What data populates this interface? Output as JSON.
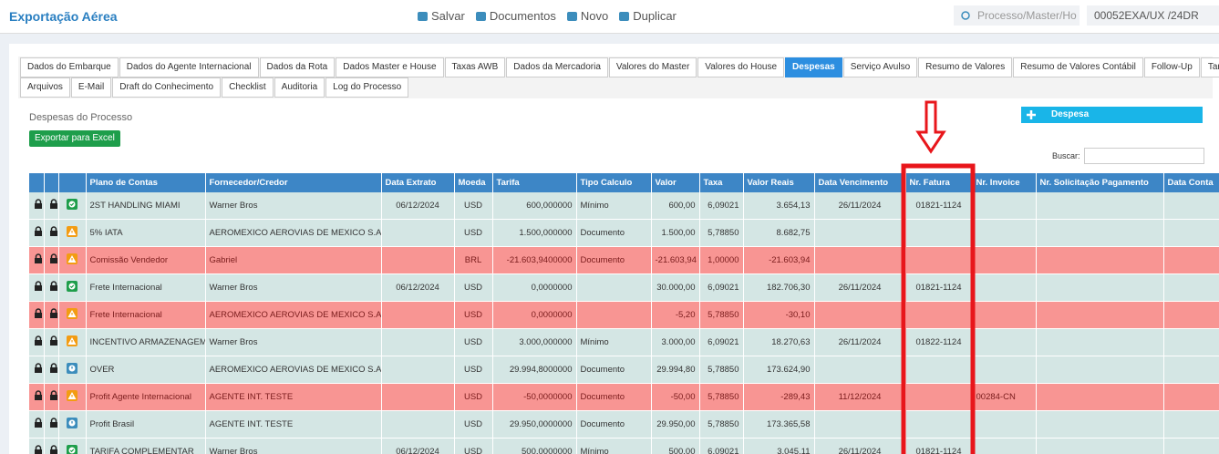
{
  "header": {
    "title": "Exportação Aérea",
    "actions": [
      "Salvar",
      "Documentos",
      "Novo",
      "Duplicar"
    ],
    "search_placeholder": "Processo/Master/Ho",
    "process_code": "00052EXA/UX /24DR"
  },
  "tabs": {
    "row1": [
      "Dados do Embarque",
      "Dados do Agente Internacional",
      "Dados da Rota",
      "Dados Master e House",
      "Taxas AWB",
      "Dados da Mercadoria",
      "Valores do Master",
      "Valores do House",
      "Despesas",
      "Serviço Avulso",
      "Resumo de Valores",
      "Resumo de Valores Contábil",
      "Follow-Up",
      "Tarefas"
    ],
    "row2": [
      "Arquivos",
      "E-Mail",
      "Draft do Conhecimento",
      "Checklist",
      "Auditoria",
      "Log do Processo"
    ],
    "active_tab": 8
  },
  "section": {
    "title": "Despesas do Processo",
    "export_button": "Exportar para Excel",
    "add_button": "Despesa",
    "search_label": "Buscar:"
  },
  "table": {
    "columns": [
      "Plano de Contas",
      "Fornecedor/Credor",
      "Data Extrato",
      "Moeda",
      "Tarifa",
      "Tipo Calculo",
      "Valor",
      "Taxa",
      "Valor Reais",
      "Data Vencimento",
      "Nr. Fatura",
      "Nr. Invoice",
      "Nr. Solicitação Pagamento",
      "Data Conta"
    ],
    "rows": [
      {
        "status": "ok",
        "alert": false,
        "cells": [
          "2ST HANDLING MIAMI",
          "Warner Bros",
          "06/12/2024",
          "USD",
          "600,000000",
          "Mínimo",
          "600,00",
          "6,09021",
          "3.654,13",
          "26/11/2024",
          "01821-1124",
          null,
          null,
          null
        ]
      },
      {
        "status": "warning",
        "alert": false,
        "cells": [
          "5% IATA",
          "AEROMEXICO AEROVIAS DE MEXICO S.A.",
          null,
          "USD",
          "1.500,000000",
          "Documento",
          "1.500,00",
          "5,78850",
          "8.682,75",
          null,
          null,
          null,
          null,
          null
        ]
      },
      {
        "status": "warning",
        "alert": true,
        "cells": [
          "Comissão Vendedor",
          "Gabriel",
          null,
          "BRL",
          "-21.603,9400000",
          "Documento",
          "-21.603,94",
          "1,00000",
          "-21.603,94",
          null,
          null,
          null,
          null,
          null
        ]
      },
      {
        "status": "ok",
        "alert": false,
        "cells": [
          "Frete Internacional",
          "Warner Bros",
          "06/12/2024",
          "USD",
          "0,0000000",
          null,
          "30.000,00",
          "6,09021",
          "182.706,30",
          "26/11/2024",
          "01821-1124",
          null,
          null,
          null
        ]
      },
      {
        "status": "warning",
        "alert": true,
        "cells": [
          "Frete Internacional",
          "AEROMEXICO AEROVIAS DE MEXICO S.A.",
          null,
          "USD",
          "0,0000000",
          null,
          "-5,20",
          "5,78850",
          "-30,10",
          null,
          null,
          null,
          null,
          null
        ]
      },
      {
        "status": "warning",
        "alert": false,
        "cells": [
          "INCENTIVO ARMAZENAGEM",
          "Warner Bros",
          null,
          "USD",
          "3.000,000000",
          "Mínimo",
          "3.000,00",
          "6,09021",
          "18.270,63",
          "26/11/2024",
          "01822-1124",
          null,
          null,
          null
        ]
      },
      {
        "status": "info",
        "alert": false,
        "cells": [
          "OVER",
          "AEROMEXICO AEROVIAS DE MEXICO S.A.",
          null,
          "USD",
          "29.994,8000000",
          "Documento",
          "29.994,80",
          "5,78850",
          "173.624,90",
          null,
          null,
          null,
          null,
          null
        ]
      },
      {
        "status": "warning",
        "alert": true,
        "cells": [
          "Profit Agente Internacional",
          "AGENTE INT. TESTE",
          null,
          "USD",
          "-50,0000000",
          "Documento",
          "-50,00",
          "5,78850",
          "-289,43",
          "11/12/2024",
          null,
          "00284-CN",
          null,
          null
        ]
      },
      {
        "status": "info",
        "alert": false,
        "cells": [
          "Profit Brasil",
          "AGENTE INT. TESTE",
          null,
          "USD",
          "29.950,0000000",
          "Documento",
          "29.950,00",
          "5,78850",
          "173.365,58",
          null,
          null,
          null,
          null,
          null
        ]
      },
      {
        "status": "ok",
        "alert": false,
        "cells": [
          "TARIFA COMPLEMENTAR",
          "Warner Bros",
          "06/12/2024",
          "USD",
          "500,0000000",
          "Mínimo",
          "500,00",
          "6,09021",
          "3.045,11",
          "26/11/2024",
          "01821-1124",
          null,
          null,
          null
        ]
      }
    ]
  }
}
